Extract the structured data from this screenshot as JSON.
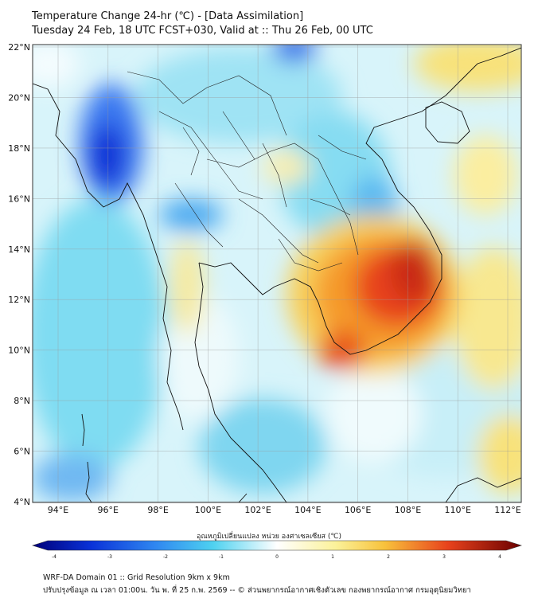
{
  "title_line1": "Temperature Change 24-hr (℃) - [Data Assimilation]",
  "title_line2": "Tuesday 24 Feb, 18 UTC FCST+030, Valid at :: Thu 26 Feb, 00 UTC",
  "lat_labels": [
    "22°N",
    "20°N",
    "18°N",
    "16°N",
    "14°N",
    "12°N",
    "10°N",
    "8°N",
    "6°N",
    "4°N"
  ],
  "lon_labels": [
    "94°E",
    "96°E",
    "98°E",
    "100°E",
    "102°E",
    "104°E",
    "106°E",
    "108°E",
    "110°E",
    "112°E"
  ],
  "colorbar": {
    "label": "อุณหภูมิเปลี่ยนแปลง หน่วย องศาเซลเซียส (℃)",
    "min": -4,
    "max": 4,
    "ticks": [
      "-4",
      "-3",
      "-2",
      "-1",
      "0",
      "1",
      "2",
      "3",
      "4"
    ]
  },
  "colors": {
    "dark_blue": "#0b2fd6",
    "blue": "#3a78f0",
    "cyan": "#4fd2f0",
    "light": "#eefafc",
    "yellow": "#f8e27a",
    "orange": "#f59a2a",
    "red": "#e8421c",
    "dark_red": "#8a0a0a"
  },
  "footer_line1": "WRF-DA Domain 01 :: Grid Resolution 9km x 9km",
  "footer_line2": "ปรับปรุงข้อมูล ณ เวลา 01:00น. วัน พ. ที่ 25 ก.พ. 2569 -- © ส่วนพยากรณ์อากาศเชิงตัวเลข กองพยากรณ์อากาศ กรมอุตุนิยมวิทยา"
}
